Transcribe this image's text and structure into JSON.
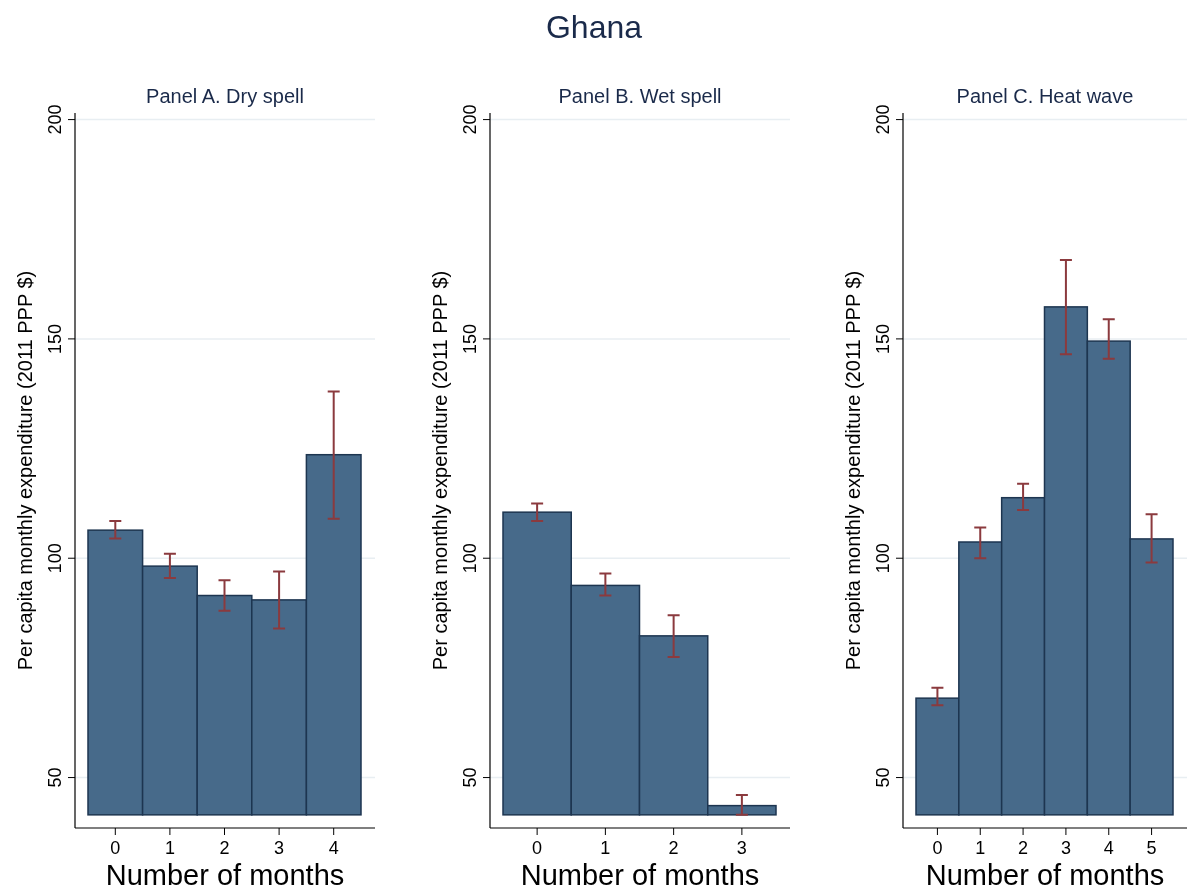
{
  "chart_data": [
    {
      "type": "other",
      "title": "Ghana"
    },
    {
      "type": "bar",
      "title": "Panel A. Dry spell",
      "xlabel": "Number of months",
      "ylabel": "Per capita monthly expenditure (2011 PPP $)",
      "categories": [
        "0",
        "1",
        "2",
        "3",
        "4"
      ],
      "base": [
        41.5,
        41.5,
        41.5,
        41.5,
        41.5
      ],
      "values": [
        64.9,
        56.7,
        50,
        49,
        82.1
      ],
      "errors": [
        [
          104.5,
          108.5
        ],
        [
          95.5,
          101
        ],
        [
          88,
          95
        ],
        [
          84,
          97
        ],
        [
          109,
          138
        ]
      ],
      "color": "#476a8a",
      "ylim": [
        38.5,
        201.5
      ],
      "yticks": [
        50,
        100,
        150,
        200
      ],
      "grid": "y"
    },
    {
      "type": "bar",
      "title": "Panel B. Wet spell",
      "xlabel": "Number of months",
      "ylabel": "Per capita monthly expenditure (2011 PPP $)",
      "categories": [
        "0",
        "1",
        "2",
        "3"
      ],
      "base": [
        41.5,
        41.5,
        41.5,
        41.5
      ],
      "values": [
        69,
        52.3,
        40.8,
        2.1
      ],
      "errors": [
        [
          108.5,
          112.5
        ],
        [
          91.5,
          96.5
        ],
        [
          77.5,
          87
        ],
        [
          41.5,
          46
        ]
      ],
      "color": "#476a8a",
      "ylim": [
        38.5,
        201.5
      ],
      "yticks": [
        50,
        100,
        150,
        200
      ],
      "grid": "y"
    },
    {
      "type": "bar",
      "title": "Panel C. Heat wave",
      "xlabel": "Number of months",
      "ylabel": "Per capita monthly expenditure (2011 PPP $)",
      "categories": [
        "0",
        "1",
        "2",
        "3",
        "4",
        "5"
      ],
      "base": [
        41.5,
        41.5,
        41.5,
        41.5,
        41.5,
        41.5
      ],
      "values": [
        26.6,
        62.2,
        72.3,
        115.8,
        108,
        62.9
      ],
      "errors": [
        [
          66.5,
          70.5
        ],
        [
          100,
          107
        ],
        [
          111,
          117
        ],
        [
          146.5,
          168
        ],
        [
          145.5,
          154.5
        ],
        [
          99,
          110
        ]
      ],
      "color": "#476a8a",
      "ylim": [
        38.5,
        201.5
      ],
      "yticks": [
        50,
        100,
        150,
        200
      ],
      "grid": "y"
    }
  ]
}
